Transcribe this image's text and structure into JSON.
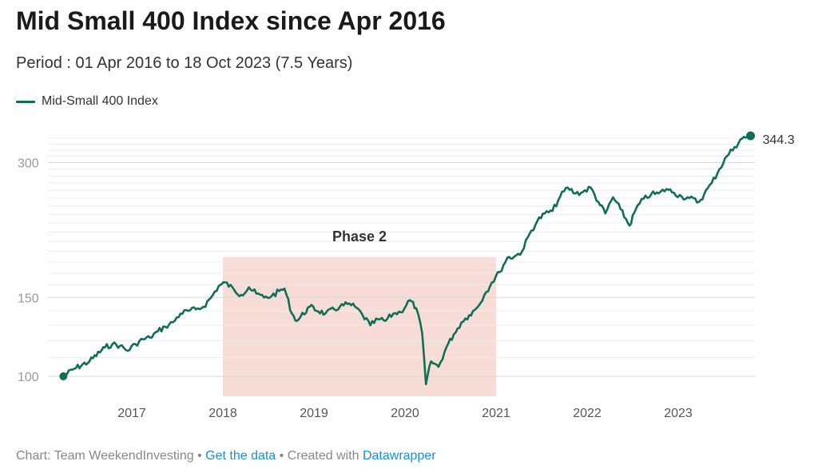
{
  "chart_data": {
    "type": "line",
    "title": "Mid Small 400 Index since Apr 2016",
    "subtitle": "Period : 01 Apr 2016 to 18 Oct 2023 (7.5 Years)",
    "y_scale": "log",
    "ylim": [
      100,
      344.3
    ],
    "y_ticks": [
      100,
      150,
      300
    ],
    "x_tick_labels": [
      "2017",
      "2018",
      "2019",
      "2020",
      "2021",
      "2022",
      "2023"
    ],
    "grid": true,
    "legend_position": "top-left",
    "series": [
      {
        "name": "Mid-Small 400 Index",
        "color": "#0f6e55",
        "points": [
          [
            "2016-04-01",
            100
          ],
          [
            "2016-05-15",
            104
          ],
          [
            "2016-07-15",
            108
          ],
          [
            "2016-09-15",
            116
          ],
          [
            "2016-10-15",
            118
          ],
          [
            "2016-11-15",
            117
          ],
          [
            "2016-12-15",
            114
          ],
          [
            "2017-01-15",
            118
          ],
          [
            "2017-02-15",
            121
          ],
          [
            "2017-03-15",
            122
          ],
          [
            "2017-04-15",
            126
          ],
          [
            "2017-05-15",
            129
          ],
          [
            "2017-06-15",
            132
          ],
          [
            "2017-07-15",
            138
          ],
          [
            "2017-08-15",
            140
          ],
          [
            "2017-09-15",
            141
          ],
          [
            "2017-10-15",
            143
          ],
          [
            "2017-11-15",
            150
          ],
          [
            "2017-12-15",
            159
          ],
          [
            "2018-01-10",
            162
          ],
          [
            "2018-02-15",
            156
          ],
          [
            "2018-03-15",
            152
          ],
          [
            "2018-04-15",
            158
          ],
          [
            "2018-05-15",
            153
          ],
          [
            "2018-06-15",
            150
          ],
          [
            "2018-07-15",
            151
          ],
          [
            "2018-08-15",
            155
          ],
          [
            "2018-09-05",
            157
          ],
          [
            "2018-10-05",
            138
          ],
          [
            "2018-10-25",
            133
          ],
          [
            "2018-12-15",
            143
          ],
          [
            "2019-02-15",
            138
          ],
          [
            "2019-04-15",
            143
          ],
          [
            "2019-05-15",
            145
          ],
          [
            "2019-06-15",
            143
          ],
          [
            "2019-07-15",
            137
          ],
          [
            "2019-08-15",
            130
          ],
          [
            "2019-09-15",
            134
          ],
          [
            "2019-10-15",
            133
          ],
          [
            "2019-11-15",
            138
          ],
          [
            "2019-12-15",
            139
          ],
          [
            "2020-01-20",
            148
          ],
          [
            "2020-02-15",
            142
          ],
          [
            "2020-03-10",
            125
          ],
          [
            "2020-03-25",
            96
          ],
          [
            "2020-04-15",
            108
          ],
          [
            "2020-05-15",
            105
          ],
          [
            "2020-06-15",
            116
          ],
          [
            "2020-07-15",
            124
          ],
          [
            "2020-08-15",
            132
          ],
          [
            "2020-09-15",
            137
          ],
          [
            "2020-10-15",
            142
          ],
          [
            "2020-11-15",
            152
          ],
          [
            "2020-12-15",
            162
          ],
          [
            "2021-01-15",
            171
          ],
          [
            "2021-02-15",
            184
          ],
          [
            "2021-03-15",
            185
          ],
          [
            "2021-04-15",
            190
          ],
          [
            "2021-05-15",
            208
          ],
          [
            "2021-06-15",
            222
          ],
          [
            "2021-07-15",
            231
          ],
          [
            "2021-08-15",
            234
          ],
          [
            "2021-09-15",
            252
          ],
          [
            "2021-10-15",
            264
          ],
          [
            "2021-11-15",
            256
          ],
          [
            "2021-12-15",
            258
          ],
          [
            "2022-01-15",
            264
          ],
          [
            "2022-02-15",
            245
          ],
          [
            "2022-03-15",
            231
          ],
          [
            "2022-04-15",
            251
          ],
          [
            "2022-05-15",
            236
          ],
          [
            "2022-06-20",
            217
          ],
          [
            "2022-07-15",
            236
          ],
          [
            "2022-08-15",
            249
          ],
          [
            "2022-09-15",
            255
          ],
          [
            "2022-10-15",
            256
          ],
          [
            "2022-11-15",
            262
          ],
          [
            "2022-12-15",
            257
          ],
          [
            "2023-01-15",
            252
          ],
          [
            "2023-02-15",
            250
          ],
          [
            "2023-03-25",
            245
          ],
          [
            "2023-04-15",
            255
          ],
          [
            "2023-05-15",
            270
          ],
          [
            "2023-06-15",
            290
          ],
          [
            "2023-07-15",
            310
          ],
          [
            "2023-08-15",
            325
          ],
          [
            "2023-09-15",
            340
          ],
          [
            "2023-10-18",
            344.3
          ]
        ]
      }
    ],
    "end_label": "344.3",
    "highlight": {
      "label": "Phase 2",
      "from": "2018-01-01",
      "to": "2021-01-01",
      "color": "#f7ddd6"
    }
  },
  "footer": {
    "prefix": "Chart: Team WeekendInvesting • ",
    "get_data": "Get the data",
    "middle": " • Created with ",
    "datawrapper": "Datawrapper"
  }
}
